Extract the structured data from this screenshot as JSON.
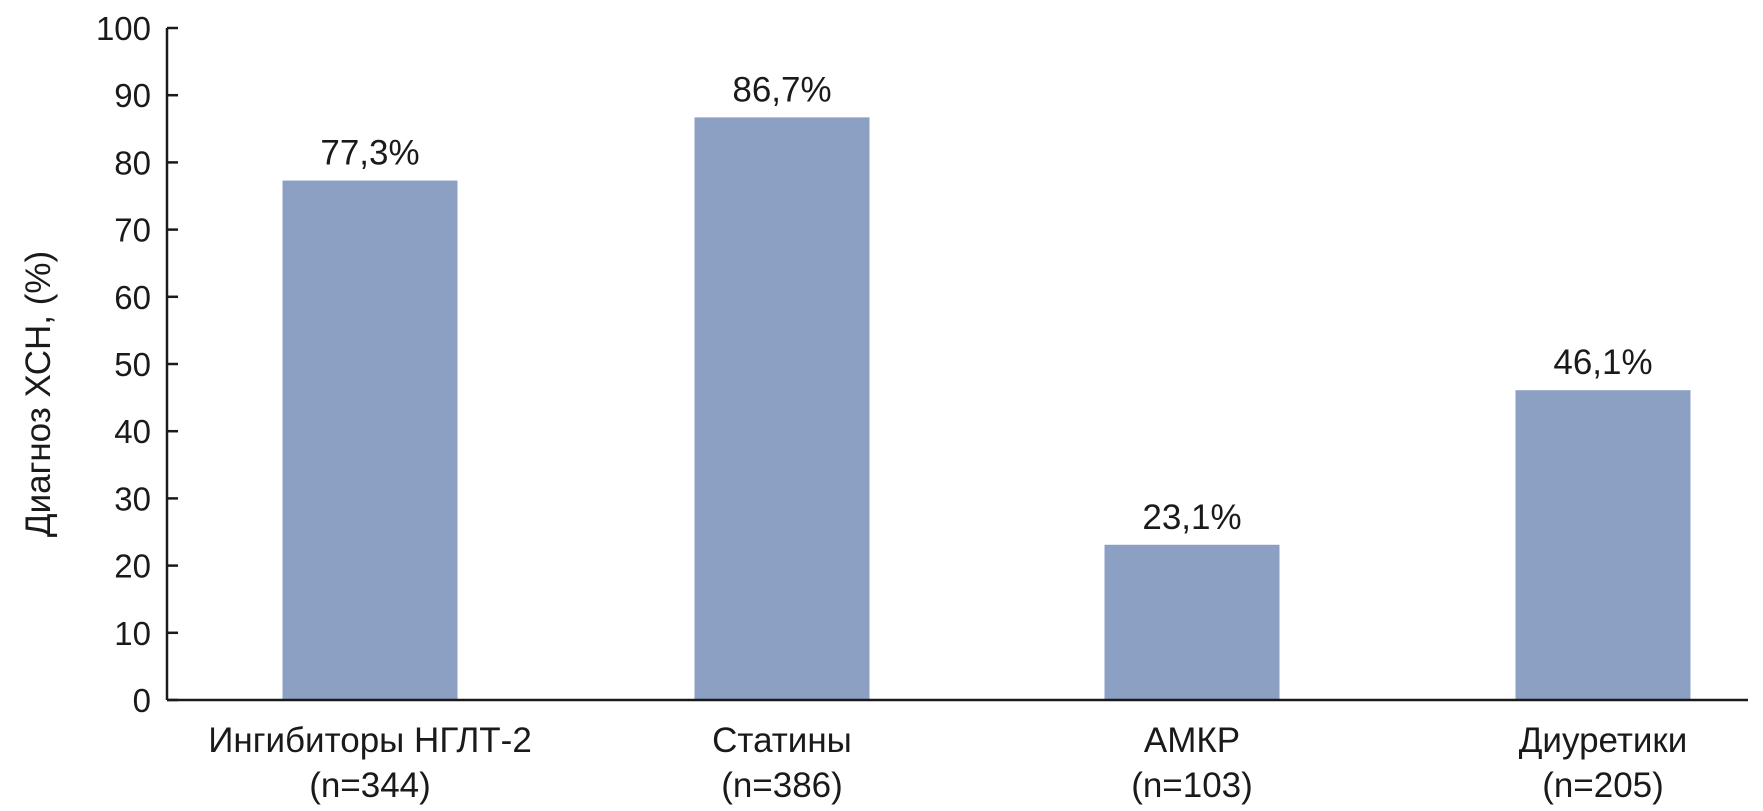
{
  "chart_data": {
    "type": "bar",
    "ylabel": "Диагноз ХСН, (%)",
    "xlabel": "",
    "ylim": [
      0,
      100
    ],
    "yticks": [
      0,
      10,
      20,
      30,
      40,
      50,
      60,
      70,
      80,
      90,
      100
    ],
    "grid": false,
    "categories": [
      {
        "name": "Ингибиторы НГЛТ-2",
        "n": "(n=344)"
      },
      {
        "name": "Статины",
        "n": "(n=386)"
      },
      {
        "name": "АМКР",
        "n": "(n=103)"
      },
      {
        "name": "Диуретики",
        "n": "(n=205)"
      }
    ],
    "values": [
      77.3,
      86.7,
      23.1,
      46.1
    ],
    "value_labels": [
      "77,3%",
      "86,7%",
      "23,1%",
      "46,1%"
    ],
    "bar_color": "#8ca0c4",
    "axis_color": "#1a1a1a"
  }
}
